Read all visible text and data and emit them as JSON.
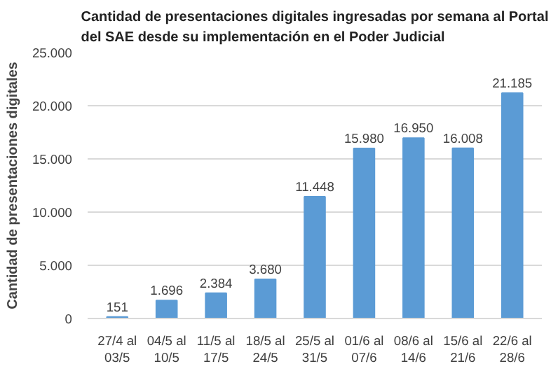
{
  "chart_data": {
    "type": "bar",
    "title": "Cantidad de presentaciones digitales ingresadas por semana al Portal\ndel SAE desde su implementación en el Poder Judicial",
    "ylabel": "Cantidad de presentaciones digitales",
    "categories": [
      "27/4 al\n03/5",
      "04/5 al\n10/5",
      "11/5 al\n17/5",
      "18/5 al\n24/5",
      "25/5 al\n31/5",
      "01/6 al\n07/6",
      "08/6 al\n14/6",
      "15/6 al\n21/6",
      "22/6 al\n28/6"
    ],
    "values": [
      151,
      1696,
      2384,
      3680,
      11448,
      15980,
      16950,
      16008,
      21185
    ],
    "value_labels": [
      "151",
      "1.696",
      "2.384",
      "3.680",
      "11.448",
      "15.980",
      "16.950",
      "16.008",
      "21.185"
    ],
    "color": "#5b9bd5",
    "ylim": [
      0,
      25000
    ],
    "yticks": [
      {
        "value": 0,
        "label": "0"
      },
      {
        "value": 5000,
        "label": "5.000"
      },
      {
        "value": 10000,
        "label": "10.000"
      },
      {
        "value": 15000,
        "label": "15.000"
      },
      {
        "value": 20000,
        "label": "20.000"
      },
      {
        "value": 25000,
        "label": "25.000"
      }
    ],
    "grid": "y"
  }
}
